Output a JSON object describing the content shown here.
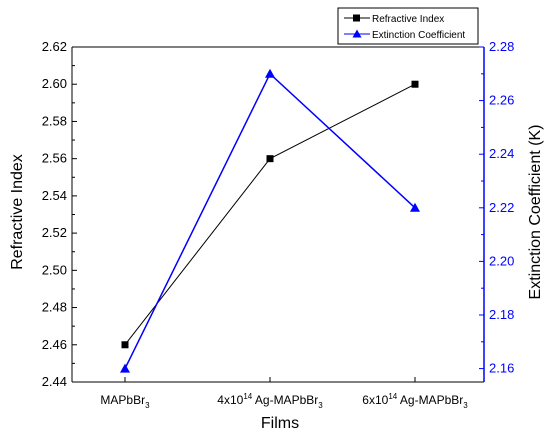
{
  "chart_data": {
    "type": "line",
    "xlabel": "Films",
    "categories": [
      {
        "main": "MAPbBr",
        "sub": "3"
      },
      {
        "pre": "4x10",
        "sup": "14",
        "main": " Ag-MAPbBr",
        "sub": "3"
      },
      {
        "pre": "6x10",
        "sup": "14",
        "main": " Ag-MAPbBr",
        "sub": "3"
      }
    ],
    "y_left": {
      "label": "Refractive Index",
      "ylim": [
        2.44,
        2.62
      ],
      "ticks": [
        "2.44",
        "2.46",
        "2.48",
        "2.50",
        "2.52",
        "2.54",
        "2.56",
        "2.58",
        "2.60",
        "2.62"
      ]
    },
    "y_right": {
      "label": "Extinction Coefficient (K)",
      "ylim": [
        2.155,
        2.28
      ],
      "ticks": [
        "2.16",
        "2.18",
        "2.20",
        "2.22",
        "2.24",
        "2.26",
        "2.28"
      ],
      "color": "#0000ff"
    },
    "series": [
      {
        "name": "Refractive Index",
        "values": [
          2.46,
          2.56,
          2.6
        ],
        "color": "#000000",
        "marker": "square",
        "axis": "left"
      },
      {
        "name": "Extinction Coefficient",
        "values": [
          2.16,
          2.27,
          2.22
        ],
        "color": "#0000ff",
        "marker": "triangle",
        "axis": "right"
      }
    ],
    "legend_position": "top-right"
  }
}
